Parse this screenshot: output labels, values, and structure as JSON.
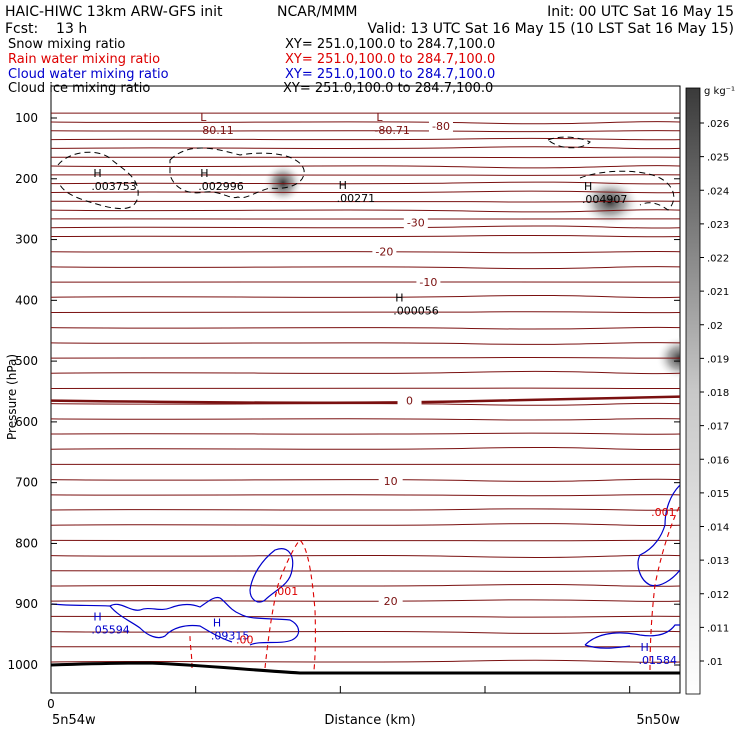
{
  "header": {
    "left_line1": "HAIC-HIWC 13km ARW-GFS init",
    "center_line1": "NCAR/MMM",
    "right_line1": "Init: 00 UTC Sat 16 May 15",
    "left_line2": "Fcst:    13 h",
    "right_line2": "Valid: 13 UTC Sat 16 May 15 (10 LST Sat 16 May 15)"
  },
  "fields": [
    {
      "label": "Snow mixing ratio",
      "xy": "XY= 251.0,100.0 to 284.7,100.0",
      "color": "#000000"
    },
    {
      "label": "Rain water mixing ratio",
      "xy": "XY= 251.0,100.0 to 284.7,100.0",
      "color": "#dd0000"
    },
    {
      "label": "Cloud water mixing ratio",
      "xy": "XY= 251.0,100.0 to 284.7,100.0",
      "color": "#0000cc"
    },
    {
      "label": "Cloud ice mixing ratio",
      "xy": "XY= 251.0,100.0 to 284.7,100.0",
      "color": "#000000"
    }
  ],
  "chart_data": {
    "type": "cross-section",
    "ylabel": "Pressure (hPa)",
    "xlabel": "Distance (km)",
    "x_left_label": "5n54w",
    "x_right_label": "5n50w",
    "x_ticks": [
      "0"
    ],
    "y_ticks": [
      100,
      200,
      300,
      400,
      500,
      600,
      700,
      800,
      900,
      1000
    ],
    "ylim": [
      1050,
      70
    ],
    "colorbar": {
      "unit": "g kg⁻¹",
      "levels": [
        ".01",
        ".011",
        ".012",
        ".013",
        ".014",
        ".015",
        ".016",
        ".017",
        ".018",
        ".019",
        ".02",
        ".021",
        ".022",
        ".023",
        ".024",
        ".025",
        ".026"
      ]
    },
    "temperature_contours": [
      {
        "label": "-80",
        "p": 113
      },
      {
        "label": "-30",
        "p": 272
      },
      {
        "label": "-20",
        "p": 320
      },
      {
        "label": "-10",
        "p": 370
      },
      {
        "label": "0",
        "p": 565
      },
      {
        "label": "10",
        "p": 697
      },
      {
        "label": "20",
        "p": 895
      }
    ],
    "extrema": [
      {
        "type": "L",
        "value": "-80.11",
        "series": "temperature",
        "x": 0.25,
        "p": 108
      },
      {
        "type": "L",
        "value": "-80.71",
        "series": "temperature",
        "x": 0.53,
        "p": 108
      },
      {
        "type": "H",
        "value": ".003753",
        "series": "snow",
        "x": 0.08,
        "p": 200
      },
      {
        "type": "H",
        "value": ".002996",
        "series": "snow",
        "x": 0.25,
        "p": 200
      },
      {
        "type": "H",
        "value": ".00271",
        "series": "snow",
        "x": 0.47,
        "p": 220
      },
      {
        "type": "H",
        "value": ".004907",
        "series": "snow",
        "x": 0.86,
        "p": 222
      },
      {
        "type": "H",
        "value": ".000056",
        "series": "snow",
        "x": 0.56,
        "p": 405
      },
      {
        "type": "H",
        "value": ".05594",
        "series": "cloud-water",
        "x": 0.08,
        "p": 930
      },
      {
        "type": "H",
        "value": ".09315",
        "series": "cloud-water",
        "x": 0.27,
        "p": 940
      },
      {
        "type": "H",
        "value": ".01584",
        "series": "cloud-water",
        "x": 0.95,
        "p": 980
      }
    ],
    "rain_labels": [
      {
        "label": ".001",
        "x": 0.37,
        "p": 885
      },
      {
        "label": ".00",
        "x": 0.31,
        "p": 965
      },
      {
        "label": ".001",
        "x": 0.97,
        "p": 755
      }
    ]
  }
}
